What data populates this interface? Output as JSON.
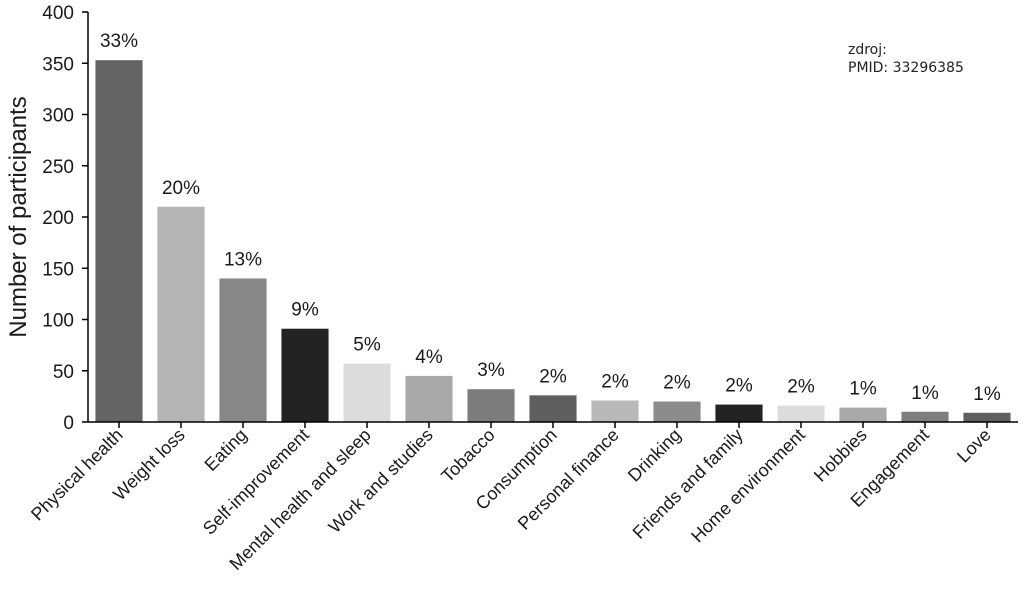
{
  "source": {
    "line1": "zdroj:",
    "line2": "PMID: 33296385"
  },
  "chart_data": {
    "type": "bar",
    "title": "",
    "xlabel": "",
    "ylabel": "Number of participants",
    "ylim": [
      0,
      400
    ],
    "yticks": [
      0,
      50,
      100,
      150,
      200,
      250,
      300,
      350,
      400
    ],
    "grid": false,
    "categories": [
      "Physical health",
      "Weight loss",
      "Eating",
      "Self-improvement",
      "Mental health and sleep",
      "Work and studies",
      "Tobacco",
      "Consumption",
      "Personal finance",
      "Drinking",
      "Friends and family",
      "Home environment",
      "Hobbies",
      "Engagement",
      "Love"
    ],
    "values": [
      353,
      210,
      140,
      91,
      57,
      45,
      32,
      26,
      21,
      20,
      17,
      16,
      14,
      10,
      9
    ],
    "data_labels": [
      "33%",
      "20%",
      "13%",
      "9%",
      "5%",
      "4%",
      "3%",
      "2%",
      "2%",
      "2%",
      "2%",
      "2%",
      "1%",
      "1%",
      "1%"
    ],
    "colors": [
      "#646464",
      "#b4b4b4",
      "#878787",
      "#232323",
      "#dcdcdc",
      "#a9a9a9",
      "#7d7d7d",
      "#5f5f5f",
      "#b9b9b9",
      "#8c8c8c",
      "#232323",
      "#dcdcdc",
      "#a9a9a9",
      "#7d7d7d",
      "#5f5f5f"
    ]
  }
}
